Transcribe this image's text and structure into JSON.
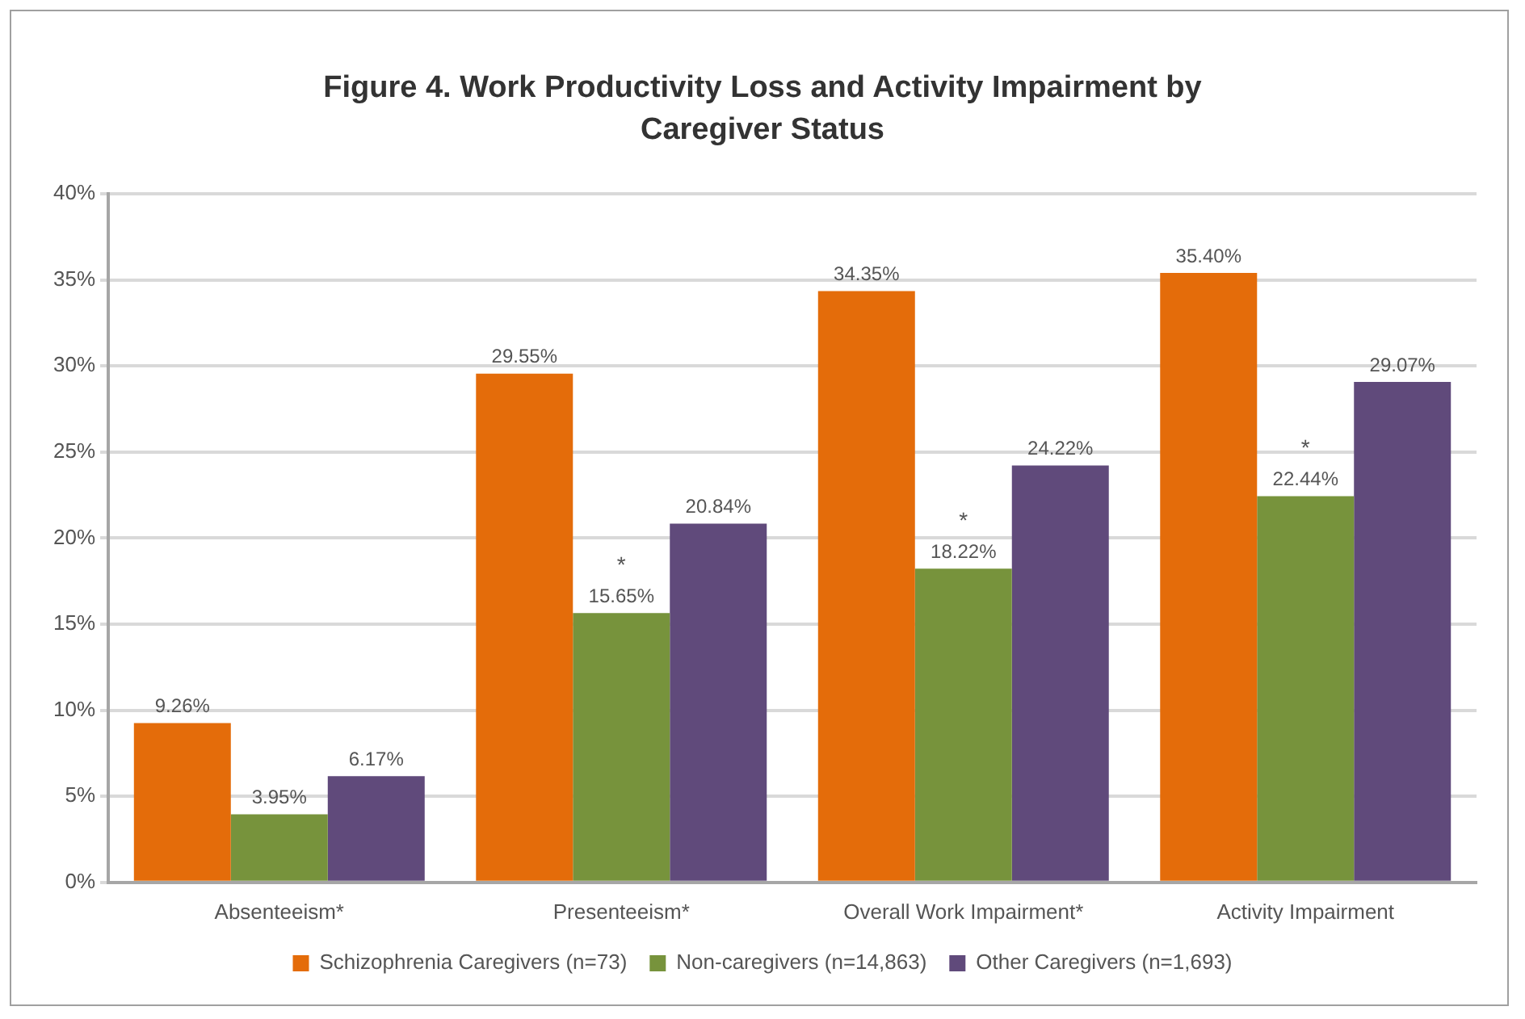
{
  "chart_data": {
    "type": "bar",
    "title": "Figure 4. Work Productivity Loss and Activity Impairment by Caregiver Status",
    "categories": [
      "Absenteeism*",
      "Presenteeism*",
      "Overall Work Impairment*",
      "Activity Impairment"
    ],
    "series": [
      {
        "name": "Schizophrenia Caregivers (n=73)",
        "color": "#e46c0a",
        "values": [
          9.26,
          29.55,
          34.35,
          35.4
        ],
        "value_labels": [
          "9.26%",
          "29.55%",
          "34.35%",
          "35.40%"
        ]
      },
      {
        "name": "Non-caregivers (n=14,863)",
        "color": "#77933c",
        "values": [
          3.95,
          15.65,
          18.22,
          22.44
        ],
        "value_labels": [
          "3.95%",
          "15.65%",
          "18.22%",
          "22.44%"
        ]
      },
      {
        "name": "Other Caregivers (n=1,693)",
        "color": "#604a7b",
        "values": [
          6.17,
          20.84,
          24.22,
          29.07
        ],
        "value_labels": [
          "6.17%",
          "20.84%",
          "24.22%",
          "29.07%"
        ]
      }
    ],
    "ylim": [
      0,
      40
    ],
    "yticks": [
      {
        "value": 0,
        "label": "0%"
      },
      {
        "value": 5,
        "label": "5%"
      },
      {
        "value": 10,
        "label": "10%"
      },
      {
        "value": 15,
        "label": "15%"
      },
      {
        "value": 20,
        "label": "20%"
      },
      {
        "value": 25,
        "label": "25%"
      },
      {
        "value": 30,
        "label": "30%"
      },
      {
        "value": 35,
        "label": "35%"
      },
      {
        "value": 40,
        "label": "40%"
      }
    ],
    "annotations": [
      {
        "text": "*",
        "x": "Presenteeism*",
        "y": 15.65
      },
      {
        "text": "*",
        "x": "Overall Work Impairment*",
        "y": 18.22
      },
      {
        "text": "*",
        "x": "Activity Impairment",
        "y": 22.44
      }
    ],
    "grid": "y",
    "legend": "bottom"
  }
}
